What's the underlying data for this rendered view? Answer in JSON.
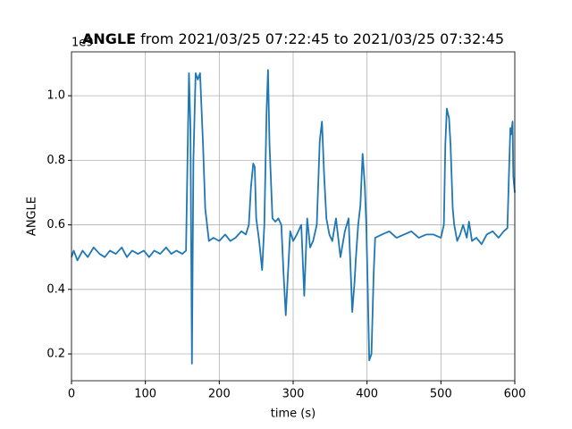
{
  "chart_data": {
    "type": "line",
    "title_bold": "ANGLE",
    "title": " from 2021/03/25 07:22:45 to 2021/03/25 07:32:45",
    "x_label": "time (s)",
    "y_label": "ANGLE",
    "y_offset_label": "1e9",
    "color": "#1f77b4",
    "grid": true,
    "xlim": [
      0,
      600
    ],
    "xticks": [
      0,
      100,
      200,
      300,
      400,
      500,
      600
    ],
    "ylim": [
      0.117,
      1.136
    ],
    "yticks": [
      0.2,
      0.4,
      0.6,
      0.8,
      {
        "value": 1.0,
        "label": "1.0"
      }
    ],
    "x": [
      0,
      3,
      8,
      15,
      22,
      30,
      38,
      45,
      52,
      60,
      68,
      75,
      82,
      90,
      98,
      105,
      112,
      120,
      128,
      135,
      142,
      150,
      155,
      157,
      159,
      161,
      163,
      165,
      168,
      171,
      174,
      178,
      181,
      186,
      192,
      200,
      208,
      215,
      222,
      230,
      236,
      240,
      243,
      246,
      248,
      250,
      254,
      258,
      261,
      264,
      266,
      268,
      272,
      276,
      280,
      284,
      287,
      290,
      293,
      296,
      300,
      305,
      311,
      315,
      319,
      323,
      327,
      332,
      336,
      339,
      342,
      345,
      349,
      353,
      358,
      364,
      370,
      375,
      378,
      380,
      383,
      385,
      388,
      391,
      394,
      397,
      399,
      401,
      403,
      406,
      409,
      411,
      420,
      430,
      440,
      450,
      460,
      470,
      480,
      490,
      500,
      504,
      506,
      508,
      511,
      513,
      516,
      518,
      522,
      526,
      530,
      535,
      538,
      542,
      548,
      555,
      562,
      570,
      578,
      585,
      590,
      592,
      594,
      595,
      597,
      598,
      600
    ],
    "values": [
      0.5,
      0.52,
      0.49,
      0.52,
      0.5,
      0.53,
      0.51,
      0.5,
      0.52,
      0.51,
      0.53,
      0.5,
      0.52,
      0.51,
      0.52,
      0.5,
      0.52,
      0.51,
      0.53,
      0.51,
      0.52,
      0.51,
      0.52,
      0.8,
      1.07,
      0.9,
      0.17,
      0.8,
      1.07,
      1.05,
      1.07,
      0.85,
      0.65,
      0.55,
      0.56,
      0.55,
      0.57,
      0.55,
      0.56,
      0.58,
      0.57,
      0.6,
      0.72,
      0.79,
      0.78,
      0.62,
      0.55,
      0.46,
      0.6,
      0.95,
      1.08,
      0.85,
      0.62,
      0.61,
      0.62,
      0.6,
      0.45,
      0.32,
      0.45,
      0.58,
      0.55,
      0.57,
      0.6,
      0.38,
      0.62,
      0.53,
      0.55,
      0.6,
      0.86,
      0.92,
      0.75,
      0.62,
      0.57,
      0.55,
      0.62,
      0.5,
      0.58,
      0.62,
      0.45,
      0.33,
      0.42,
      0.5,
      0.6,
      0.66,
      0.82,
      0.72,
      0.6,
      0.4,
      0.18,
      0.2,
      0.45,
      0.56,
      0.57,
      0.58,
      0.56,
      0.57,
      0.58,
      0.56,
      0.57,
      0.57,
      0.56,
      0.6,
      0.85,
      0.96,
      0.93,
      0.85,
      0.65,
      0.6,
      0.55,
      0.57,
      0.6,
      0.56,
      0.61,
      0.55,
      0.56,
      0.54,
      0.57,
      0.58,
      0.56,
      0.58,
      0.59,
      0.75,
      0.9,
      0.88,
      0.92,
      0.75,
      0.7
    ]
  }
}
